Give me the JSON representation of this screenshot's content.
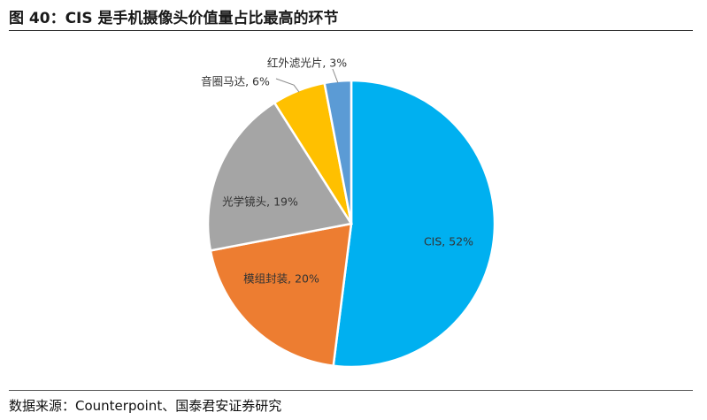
{
  "figure": {
    "title": "图 40：CIS 是手机摄像头价值量占比最高的环节",
    "source": "数据来源：Counterpoint、国泰君安证券研究"
  },
  "chart_data": {
    "type": "pie",
    "title": "图 40：CIS 是手机摄像头价值量占比最高的环节",
    "slices": [
      {
        "label": "CIS",
        "value": 52,
        "text": "CIS, 52%",
        "color": "#00B0F0"
      },
      {
        "label": "模组封装",
        "value": 20,
        "text": "模组封装, 20%",
        "color": "#ED7D31"
      },
      {
        "label": "光学镜头",
        "value": 19,
        "text": "光学镜头, 19%",
        "color": "#A5A5A5"
      },
      {
        "label": "音圈马达",
        "value": 6,
        "text": "音圈马达, 6%",
        "color": "#FFC000"
      },
      {
        "label": "红外滤光片",
        "value": 3,
        "text": "红外滤光片, 3%",
        "color": "#5B9BD5"
      }
    ],
    "start": "top",
    "direction": "clockwise",
    "legend": "none"
  }
}
